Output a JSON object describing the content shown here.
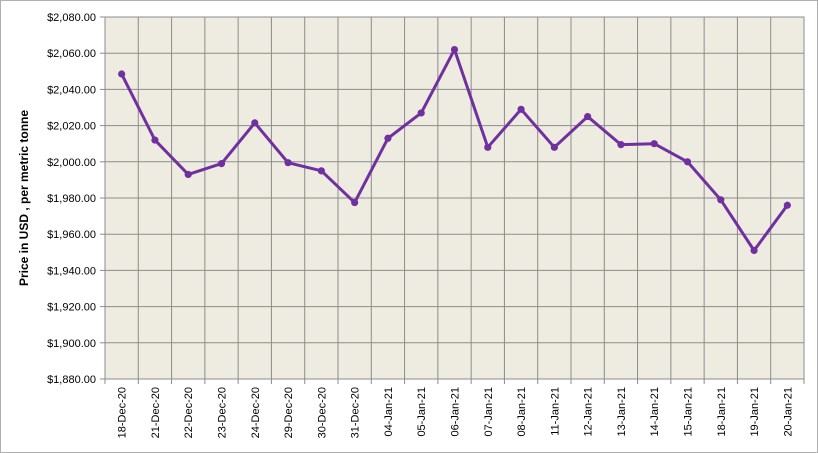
{
  "chart_data": {
    "type": "line",
    "title": "",
    "xlabel": "",
    "ylabel": "Price in USD , per metric tonne",
    "categories": [
      "18-Dec-20",
      "21-Dec-20",
      "22-Dec-20",
      "23-Dec-20",
      "24-Dec-20",
      "29-Dec-20",
      "30-Dec-20",
      "31-Dec-20",
      "04-Jan-21",
      "05-Jan-21",
      "06-Jan-21",
      "07-Jan-21",
      "08-Jan-21",
      "11-Jan-21",
      "12-Jan-21",
      "13-Jan-21",
      "14-Jan-21",
      "15-Jan-21",
      "18-Jan-21",
      "19-Jan-21",
      "20-Jan-21"
    ],
    "series": [
      {
        "values": [
          2048.5,
          2012,
          1993,
          1999,
          2021.5,
          1999.5,
          1995,
          1977.5,
          2013,
          2027,
          2062,
          2008,
          2029,
          2008,
          2025,
          2009.5,
          2010,
          2000,
          1979,
          1951,
          1976
        ],
        "color": "#7030a0"
      }
    ],
    "ylim": [
      1880,
      2080
    ],
    "yticks": [
      "$1,880.00",
      "$1,900.00",
      "$1,920.00",
      "$1,940.00",
      "$1,960.00",
      "$1,980.00",
      "$2,000.00",
      "$2,020.00",
      "$2,040.00",
      "$2,060.00",
      "$2,080.00"
    ],
    "grid": true,
    "legend": "none",
    "plot_background": "#eeece1",
    "grid_color": "#8c8c8c"
  }
}
